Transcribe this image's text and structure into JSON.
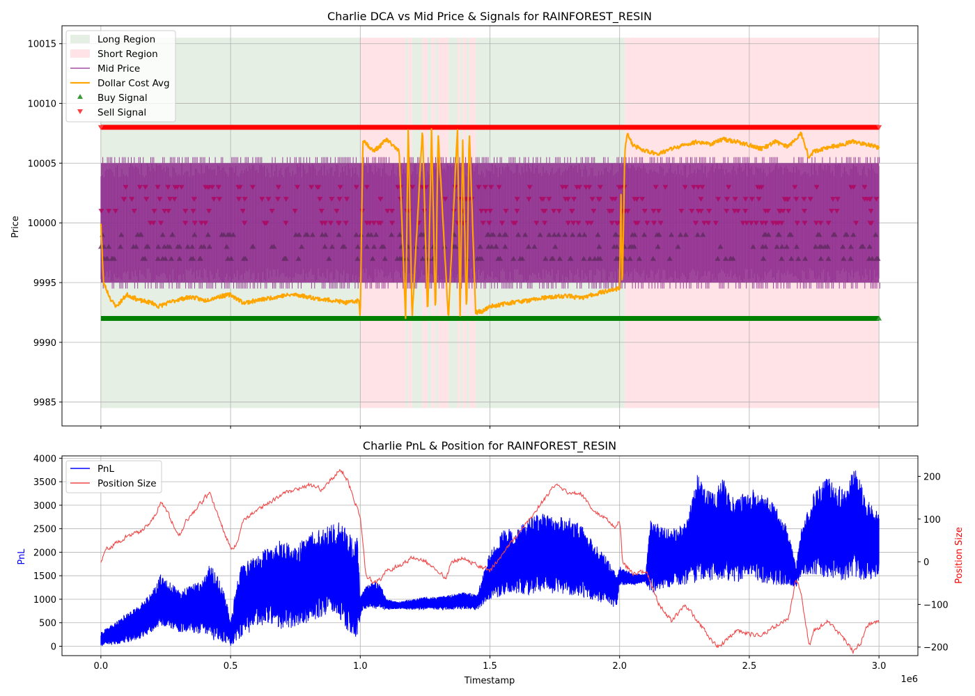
{
  "chart_data": [
    {
      "type": "line",
      "title": "Charlie DCA vs Mid Price & Signals for RAINFOREST_RESIN",
      "xlabel": "",
      "ylabel": "Price",
      "xlim": [
        -150000,
        3150000
      ],
      "ylim": [
        9983,
        10016.5
      ],
      "xticks": [
        0,
        500000,
        1000000,
        1500000,
        2000000,
        2500000,
        3000000
      ],
      "yticks": [
        9985,
        9990,
        9995,
        10000,
        10005,
        10010,
        10015
      ],
      "ytick_labels": [
        "9985",
        "9990",
        "9995",
        "10000",
        "10005",
        "10010",
        "10015"
      ],
      "grid": true,
      "legend_placement": "upper left",
      "legend": {
        "long_region": "Long Region",
        "short_region": "Short Region",
        "mid_price": "Mid Price",
        "dca": "Dollar Cost Avg",
        "buy_signal": "Buy Signal",
        "sell_signal": "Sell Signal"
      },
      "colors": {
        "long": "#e5efe4",
        "short": "#ffe3e6",
        "mid": "#8e2a8e",
        "dca": "#ffa500",
        "buy": "#008000",
        "sell": "#ff0000",
        "sell_marker": "#b0005a",
        "buy_marker": "#5a2a5a"
      },
      "regions": [
        {
          "type": "long",
          "x0": 0,
          "x1": 1000000
        },
        {
          "type": "short",
          "x0": 1000000,
          "x1": 1175000
        },
        {
          "type": "long",
          "x0": 1175000,
          "x1": 1185000
        },
        {
          "type": "short",
          "x0": 1185000,
          "x1": 1200000
        },
        {
          "type": "long",
          "x0": 1200000,
          "x1": 1240000
        },
        {
          "type": "short",
          "x0": 1240000,
          "x1": 1260000
        },
        {
          "type": "long",
          "x0": 1260000,
          "x1": 1275000
        },
        {
          "type": "short",
          "x0": 1275000,
          "x1": 1290000
        },
        {
          "type": "long",
          "x0": 1290000,
          "x1": 1300000
        },
        {
          "type": "short",
          "x0": 1300000,
          "x1": 1340000
        },
        {
          "type": "long",
          "x0": 1340000,
          "x1": 1375000
        },
        {
          "type": "short",
          "x0": 1375000,
          "x1": 1385000
        },
        {
          "type": "long",
          "x0": 1385000,
          "x1": 1395000
        },
        {
          "type": "short",
          "x0": 1395000,
          "x1": 1410000
        },
        {
          "type": "long",
          "x0": 1410000,
          "x1": 1420000
        },
        {
          "type": "short",
          "x0": 1420000,
          "x1": 1445000
        },
        {
          "type": "long",
          "x0": 1445000,
          "x1": 2020000
        },
        {
          "type": "short",
          "x0": 2020000,
          "x1": 3000000
        }
      ],
      "region_ylim": [
        9984.5,
        10015.5
      ],
      "mid_price_band": {
        "low": 9994.5,
        "high": 10005.5,
        "core_low": 9995,
        "core_high": 10005
      },
      "buy_signal_level": 9992,
      "sell_signal_level": 10008,
      "sell_marker_levels": [
        10003,
        10002,
        10001,
        10000
      ],
      "buy_marker_levels": [
        9999,
        9998,
        9997
      ],
      "dca": {
        "x": [
          0,
          10000,
          20000,
          40000,
          60000,
          80000,
          100000,
          150000,
          200000,
          220000,
          300000,
          350000,
          400000,
          450000,
          500000,
          550000,
          600000,
          650000,
          700000,
          750000,
          800000,
          850000,
          900000,
          950000,
          995000,
          1000000,
          1010000,
          1050000,
          1080000,
          1100000,
          1150000,
          1175000,
          1185000,
          1200000,
          1240000,
          1260000,
          1275000,
          1290000,
          1300000,
          1340000,
          1375000,
          1385000,
          1395000,
          1410000,
          1420000,
          1445000,
          1470000,
          1500000,
          1550000,
          1600000,
          1650000,
          1700000,
          1750000,
          1800000,
          1850000,
          1900000,
          1950000,
          2000000,
          2005000,
          2010000,
          2020000,
          2030000,
          2050000,
          2100000,
          2150000,
          2200000,
          2250000,
          2300000,
          2350000,
          2400000,
          2450000,
          2500000,
          2550000,
          2600000,
          2650000,
          2700000,
          2730000,
          2750000,
          2800000,
          2850000,
          2900000,
          2950000,
          3000000
        ],
        "y": [
          10000,
          9995,
          9994.5,
          9993.5,
          9993,
          9993.5,
          9994,
          9993.5,
          9993.3,
          9993.0,
          9993.6,
          9993.8,
          9993.5,
          9993.8,
          9994,
          9993.3,
          9993.5,
          9993.7,
          9993.9,
          9994,
          9993.8,
          9993.6,
          9993.5,
          9993.3,
          9993.5,
          9992,
          10007,
          10006,
          10006.5,
          10007,
          10006,
          9992,
          10008,
          9992,
          10008,
          9992,
          10008,
          9992,
          10007.5,
          9992,
          10008,
          9992,
          10007,
          9992,
          10008,
          9992.5,
          9992.6,
          9993,
          9993.2,
          9993.4,
          9993.5,
          9993.7,
          9993.8,
          9993.9,
          9993.7,
          9994,
          9994.3,
          9994.5,
          10003,
          9994,
          10006,
          10007.5,
          10006.5,
          10006,
          10005.8,
          10006.2,
          10006.5,
          10006.8,
          10006.6,
          10007,
          10006.8,
          10006.5,
          10006.2,
          10006.8,
          10006.4,
          10007.5,
          10005.5,
          10006,
          10006.3,
          10006.5,
          10006.8,
          10006.6,
          10006.3
        ]
      }
    },
    {
      "type": "line",
      "title": "Charlie PnL & Position for RAINFOREST_RESIN",
      "xlabel": "Timestamp",
      "ylabel": "PnL",
      "y2label": "Position Size",
      "x_offset_label": "1e6",
      "xlim": [
        -150000,
        3150000
      ],
      "xticks": [
        0,
        500000,
        1000000,
        1500000,
        2000000,
        2500000,
        3000000
      ],
      "xtick_labels": [
        "0.0",
        "0.5",
        "1.0",
        "1.5",
        "2.0",
        "2.5",
        "3.0"
      ],
      "ylim": [
        -200,
        4050
      ],
      "yticks": [
        0,
        500,
        1000,
        1500,
        2000,
        2500,
        3000,
        3500,
        4000
      ],
      "y2lim": [
        -220,
        248
      ],
      "y2ticks": [
        -200,
        -100,
        0,
        100,
        200
      ],
      "y2tick_labels": [
        "−200",
        "−100",
        "0",
        "100",
        "200"
      ],
      "grid": true,
      "legend_placement": "upper left",
      "legend": {
        "pnl": "PnL",
        "position": "Position Size"
      },
      "colors": {
        "pnl": "#0000ff",
        "position": "#f04848",
        "y2label": "#ff0000"
      },
      "pnl_envelope": {
        "x": [
          0,
          50000,
          100000,
          150000,
          200000,
          230000,
          260000,
          300000,
          350000,
          400000,
          420000,
          450000,
          480000,
          500000,
          530000,
          550000,
          600000,
          650000,
          700000,
          750000,
          800000,
          850000,
          900000,
          920000,
          950000,
          990000,
          1000000,
          1010000,
          1050000,
          1080000,
          1100000,
          1150000,
          1200000,
          1250000,
          1300000,
          1350000,
          1400000,
          1450000,
          1500000,
          1550000,
          1600000,
          1650000,
          1700000,
          1750000,
          1800000,
          1850000,
          1900000,
          1950000,
          1990000,
          2000000,
          2050000,
          2100000,
          2120000,
          2150000,
          2200000,
          2250000,
          2300000,
          2350000,
          2400000,
          2450000,
          2500000,
          2550000,
          2600000,
          2650000,
          2680000,
          2700000,
          2750000,
          2800000,
          2850000,
          2880000,
          2900000,
          2950000,
          3000000
        ],
        "low": [
          0,
          30,
          80,
          150,
          300,
          450,
          350,
          300,
          280,
          250,
          150,
          100,
          50,
          0,
          100,
          200,
          400,
          500,
          350,
          400,
          500,
          600,
          700,
          500,
          300,
          150,
          600,
          780,
          790,
          800,
          780,
          790,
          780,
          780,
          770,
          780,
          780,
          770,
          1000,
          1050,
          1100,
          1100,
          1150,
          1100,
          1100,
          1050,
          950,
          900,
          800,
          1300,
          1300,
          1350,
          1100,
          1200,
          1250,
          1300,
          1350,
          1400,
          1400,
          1350,
          1400,
          1350,
          1300,
          1300,
          1250,
          1500,
          1500,
          1450,
          1400,
          1400,
          1450,
          1400,
          1450
        ],
        "high": [
          300,
          500,
          700,
          900,
          1200,
          1550,
          1400,
          1200,
          1300,
          1500,
          1800,
          1500,
          1100,
          500,
          1600,
          1800,
          2000,
          2100,
          2300,
          2100,
          2400,
          2500,
          2600,
          2700,
          2500,
          2300,
          1000,
          1200,
          1400,
          1300,
          1000,
          950,
          1000,
          1050,
          1050,
          1100,
          1150,
          1100,
          2000,
          2500,
          2500,
          2700,
          2900,
          2700,
          2800,
          2600,
          2200,
          1900,
          1500,
          1700,
          1550,
          1550,
          2700,
          2600,
          2500,
          2600,
          3650,
          3300,
          3600,
          3100,
          3400,
          3300,
          3000,
          2500,
          1700,
          2500,
          3300,
          3600,
          3400,
          3300,
          3900,
          3200,
          2800
        ]
      },
      "position": {
        "x": [
          0,
          20000,
          50000,
          100000,
          150000,
          200000,
          230000,
          260000,
          300000,
          330000,
          350000,
          400000,
          420000,
          450000,
          480000,
          500000,
          520000,
          550000,
          600000,
          650000,
          700000,
          750000,
          800000,
          850000,
          900000,
          920000,
          950000,
          990000,
          1000000,
          1020000,
          1050000,
          1080000,
          1100000,
          1150000,
          1200000,
          1250000,
          1300000,
          1330000,
          1350000,
          1400000,
          1450000,
          1500000,
          1550000,
          1600000,
          1650000,
          1700000,
          1750000,
          1800000,
          1850000,
          1900000,
          1950000,
          1980000,
          2000000,
          2010000,
          2050000,
          2100000,
          2150000,
          2200000,
          2250000,
          2300000,
          2350000,
          2380000,
          2400000,
          2450000,
          2500000,
          2550000,
          2600000,
          2650000,
          2680000,
          2700000,
          2730000,
          2750000,
          2800000,
          2850000,
          2900000,
          2930000,
          2950000,
          3000000
        ],
        "y": [
          0,
          30,
          40,
          60,
          70,
          100,
          140,
          110,
          60,
          100,
          110,
          150,
          160,
          110,
          60,
          30,
          40,
          100,
          120,
          140,
          160,
          170,
          180,
          170,
          200,
          220,
          190,
          120,
          100,
          -30,
          -50,
          -40,
          -20,
          -10,
          10,
          0,
          -20,
          -40,
          0,
          10,
          -10,
          -20,
          20,
          60,
          100,
          140,
          180,
          160,
          160,
          120,
          100,
          80,
          100,
          0,
          -30,
          -20,
          -100,
          -140,
          -100,
          -140,
          -180,
          -200,
          -190,
          -160,
          -170,
          -170,
          -150,
          -130,
          -40,
          -80,
          -200,
          -160,
          -140,
          -170,
          -210,
          -190,
          -150,
          -140
        ]
      }
    }
  ]
}
